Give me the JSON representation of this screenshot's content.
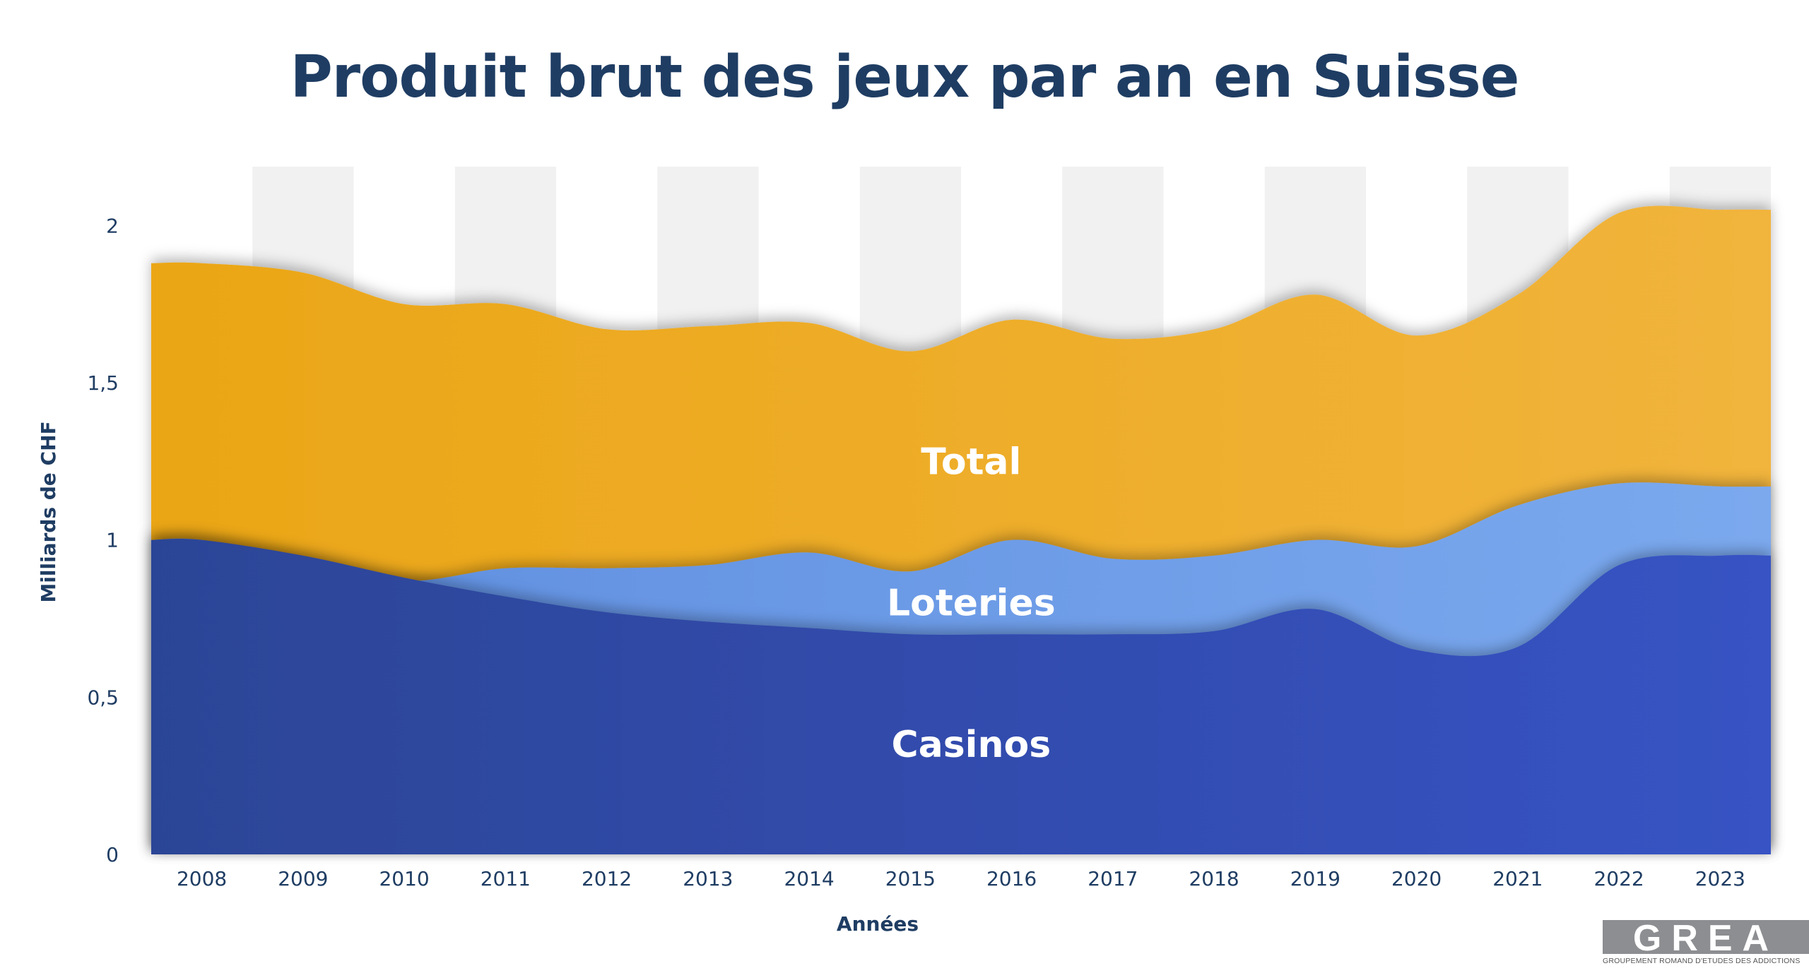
{
  "chart_data": {
    "type": "area",
    "title": "Produit brut des jeux par an en Suisse",
    "xlabel": "Années",
    "ylabel": "Milliards de CHF",
    "categories": [
      "2008",
      "2009",
      "2010",
      "2011",
      "2012",
      "2013",
      "2014",
      "2015",
      "2016",
      "2017",
      "2018",
      "2019",
      "2020",
      "2021",
      "2022",
      "2023"
    ],
    "yticks": [
      "0",
      "0,5",
      "1",
      "1,5",
      "2"
    ],
    "ylim": [
      0,
      2.2
    ],
    "stacking": "overlapping",
    "grid": false,
    "series": [
      {
        "name": "Total",
        "color": "#edaa1e",
        "values": [
          1.88,
          1.85,
          1.75,
          1.75,
          1.67,
          1.68,
          1.69,
          1.6,
          1.7,
          1.64,
          1.67,
          1.78,
          1.65,
          1.78,
          2.04,
          2.05
        ]
      },
      {
        "name": "Loteries",
        "color": "#6c9be6",
        "values": [
          1.0,
          0.94,
          0.87,
          0.91,
          0.91,
          0.92,
          0.96,
          0.9,
          1.0,
          0.94,
          0.95,
          1.0,
          0.98,
          1.11,
          1.18,
          1.17
        ]
      },
      {
        "name": "Casinos",
        "color": "#2f4aa3",
        "values": [
          1.0,
          0.95,
          0.88,
          0.82,
          0.77,
          0.74,
          0.72,
          0.7,
          0.7,
          0.7,
          0.71,
          0.78,
          0.65,
          0.66,
          0.92,
          0.95
        ]
      }
    ]
  },
  "logo": {
    "text": "GREA",
    "subtitle": "GROUPEMENT ROMAND D'ETUDES DES ADDICTIONS"
  }
}
